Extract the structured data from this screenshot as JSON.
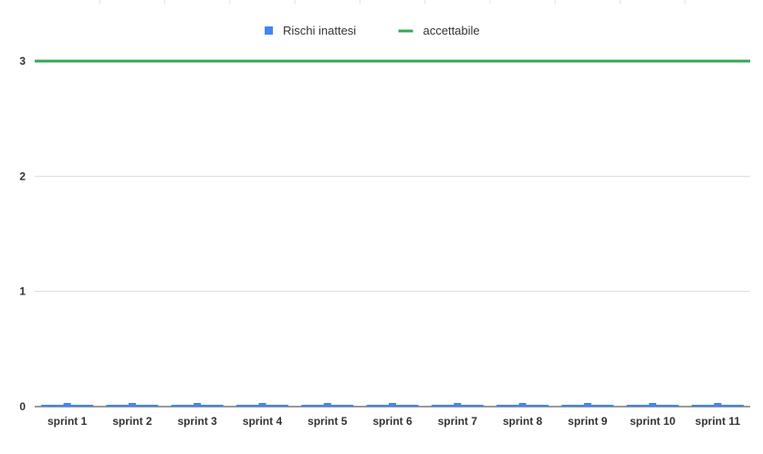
{
  "chart_data": {
    "type": "bar",
    "categories": [
      "sprint 1",
      "sprint 2",
      "sprint 3",
      "sprint 4",
      "sprint 5",
      "sprint 6",
      "sprint 7",
      "sprint 8",
      "sprint 9",
      "sprint 10",
      "sprint 11"
    ],
    "series": [
      {
        "name": "Rischi inattesi",
        "kind": "bar",
        "color": "#4285f4",
        "values": [
          0,
          0,
          0,
          0,
          0,
          0,
          0,
          0,
          0,
          0,
          0
        ]
      },
      {
        "name": "accettabile",
        "kind": "line",
        "color": "#34a853",
        "values": [
          3,
          3,
          3,
          3,
          3,
          3,
          3,
          3,
          3,
          3,
          3
        ]
      }
    ],
    "y_ticks": [
      "0",
      "1",
      "2",
      "3"
    ],
    "ylim": [
      0,
      3
    ],
    "grid": true,
    "legend_position": "top-center"
  }
}
